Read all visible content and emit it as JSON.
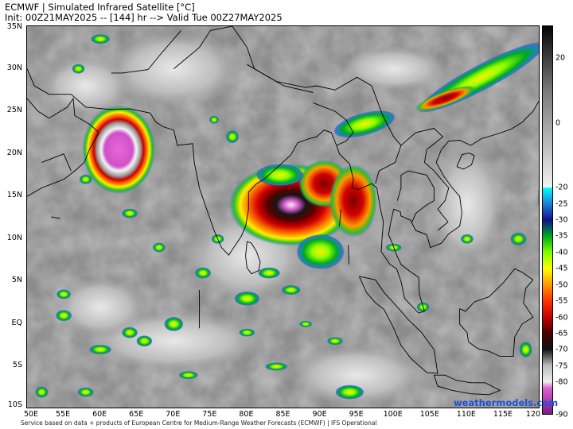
{
  "header": {
    "line1": "ECMWF | Simulated Infrared Satellite [°C]",
    "line2": "Init: 00Z21MAY2025 -- [144] hr --> Valid Tue 00Z27MAY2025"
  },
  "map": {
    "lon_range": [
      50,
      120
    ],
    "lat_range": [
      -10,
      35
    ],
    "lat_labels": [
      "35N",
      "30N",
      "25N",
      "20N",
      "15N",
      "10N",
      "5N",
      "EQ",
      "5S",
      "10S"
    ],
    "lat_values": [
      35,
      30,
      25,
      20,
      15,
      10,
      5,
      0,
      -5,
      -10
    ],
    "lon_labels": [
      "50E",
      "55E",
      "60E",
      "65E",
      "70E",
      "75E",
      "80E",
      "85E",
      "90E",
      "95E",
      "100E",
      "105E",
      "110E",
      "115E",
      "120"
    ],
    "lon_values": [
      50,
      55,
      60,
      65,
      70,
      75,
      80,
      85,
      90,
      95,
      100,
      105,
      110,
      115,
      120
    ],
    "background_color": "#8c8c8c",
    "features": [
      {
        "name": "cyclone-arabian-sea",
        "lon": 62.5,
        "lat": 20.5
      },
      {
        "name": "convective-system-bay-of-bengal",
        "lon": 86.0,
        "lat": 14.0
      }
    ]
  },
  "colorbar": {
    "labels": [
      "20",
      "0",
      "-20",
      "-25",
      "-30",
      "-35",
      "-40",
      "-45",
      "-50",
      "-55",
      "-60",
      "-65",
      "-70",
      "-75",
      "-80",
      "-90"
    ],
    "values": [
      20,
      0,
      -20,
      -25,
      -30,
      -35,
      -40,
      -45,
      -50,
      -55,
      -60,
      -65,
      -70,
      -75,
      -80,
      -90
    ],
    "range": [
      -90,
      30
    ],
    "stops": [
      {
        "v": 30,
        "c": "#050505"
      },
      {
        "v": 10,
        "c": "#7a7a7a"
      },
      {
        "v": -19.9,
        "c": "#f2f2f2"
      },
      {
        "v": -20,
        "c": "#00ffff"
      },
      {
        "v": -25,
        "c": "#1e7fd4"
      },
      {
        "v": -30,
        "c": "#10108a"
      },
      {
        "v": -35,
        "c": "#00a81e"
      },
      {
        "v": -40,
        "c": "#7fff00"
      },
      {
        "v": -45,
        "c": "#ffff00"
      },
      {
        "v": -50,
        "c": "#ff9900"
      },
      {
        "v": -55,
        "c": "#ff3300"
      },
      {
        "v": -60,
        "c": "#c80000"
      },
      {
        "v": -65,
        "c": "#4a0000"
      },
      {
        "v": -70,
        "c": "#111111"
      },
      {
        "v": -75,
        "c": "#bbbbbb"
      },
      {
        "v": -80,
        "c": "#eeeeee"
      },
      {
        "v": -82,
        "c": "#e060d0"
      },
      {
        "v": -90,
        "c": "#7a1a8a"
      }
    ]
  },
  "footer": "Service based on data + products of European Centre for Medium-Range Weather Forecasts (ECMWF) | IFS Operational",
  "brand": "weathermodels.com"
}
